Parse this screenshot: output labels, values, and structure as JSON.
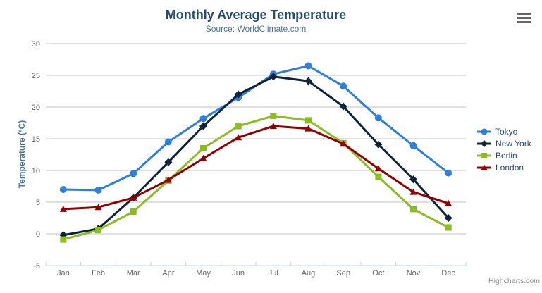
{
  "chart": {
    "title": "Monthly Average Temperature",
    "subtitle": "Source: WorldClimate.com",
    "y_axis_title": "Temperature (°C)",
    "credits": "Highcharts.com",
    "context_menu_icon": "hamburger-icon"
  },
  "chart_data": {
    "type": "line",
    "title": "Monthly Average Temperature",
    "subtitle": "Source: WorldClimate.com",
    "xlabel": "",
    "ylabel": "Temperature (°C)",
    "categories": [
      "Jan",
      "Feb",
      "Mar",
      "Apr",
      "May",
      "Jun",
      "Jul",
      "Aug",
      "Sep",
      "Oct",
      "Nov",
      "Dec"
    ],
    "ylim": [
      -5,
      30
    ],
    "ytick_step": 5,
    "ytick_labels": [
      "-5",
      "0",
      "5",
      "10",
      "15",
      "20",
      "25",
      "30"
    ],
    "grid": true,
    "legend_position": "right",
    "grid_color": "#c0c0c0",
    "axis_line_color": "#c0d0e0",
    "tick_label_color": "#666666",
    "series": [
      {
        "name": "Tokyo",
        "color": "#2f7ed8",
        "marker": "circle",
        "values": [
          7.0,
          6.9,
          9.5,
          14.5,
          18.2,
          21.5,
          25.2,
          26.5,
          23.3,
          18.3,
          13.9,
          9.6
        ]
      },
      {
        "name": "New York",
        "color": "#0d233a",
        "marker": "diamond",
        "values": [
          -0.2,
          0.8,
          5.7,
          11.3,
          17.0,
          22.0,
          24.8,
          24.1,
          20.1,
          14.1,
          8.6,
          2.5
        ]
      },
      {
        "name": "Berlin",
        "color": "#8bbc21",
        "marker": "square",
        "values": [
          -0.9,
          0.6,
          3.5,
          8.4,
          13.5,
          17.0,
          18.6,
          17.9,
          14.3,
          9.0,
          3.9,
          1.0
        ]
      },
      {
        "name": "London",
        "color": "#910000",
        "marker": "triangle",
        "values": [
          3.9,
          4.2,
          5.7,
          8.5,
          11.9,
          15.2,
          17.0,
          16.6,
          14.2,
          10.3,
          6.6,
          4.8
        ]
      }
    ]
  }
}
